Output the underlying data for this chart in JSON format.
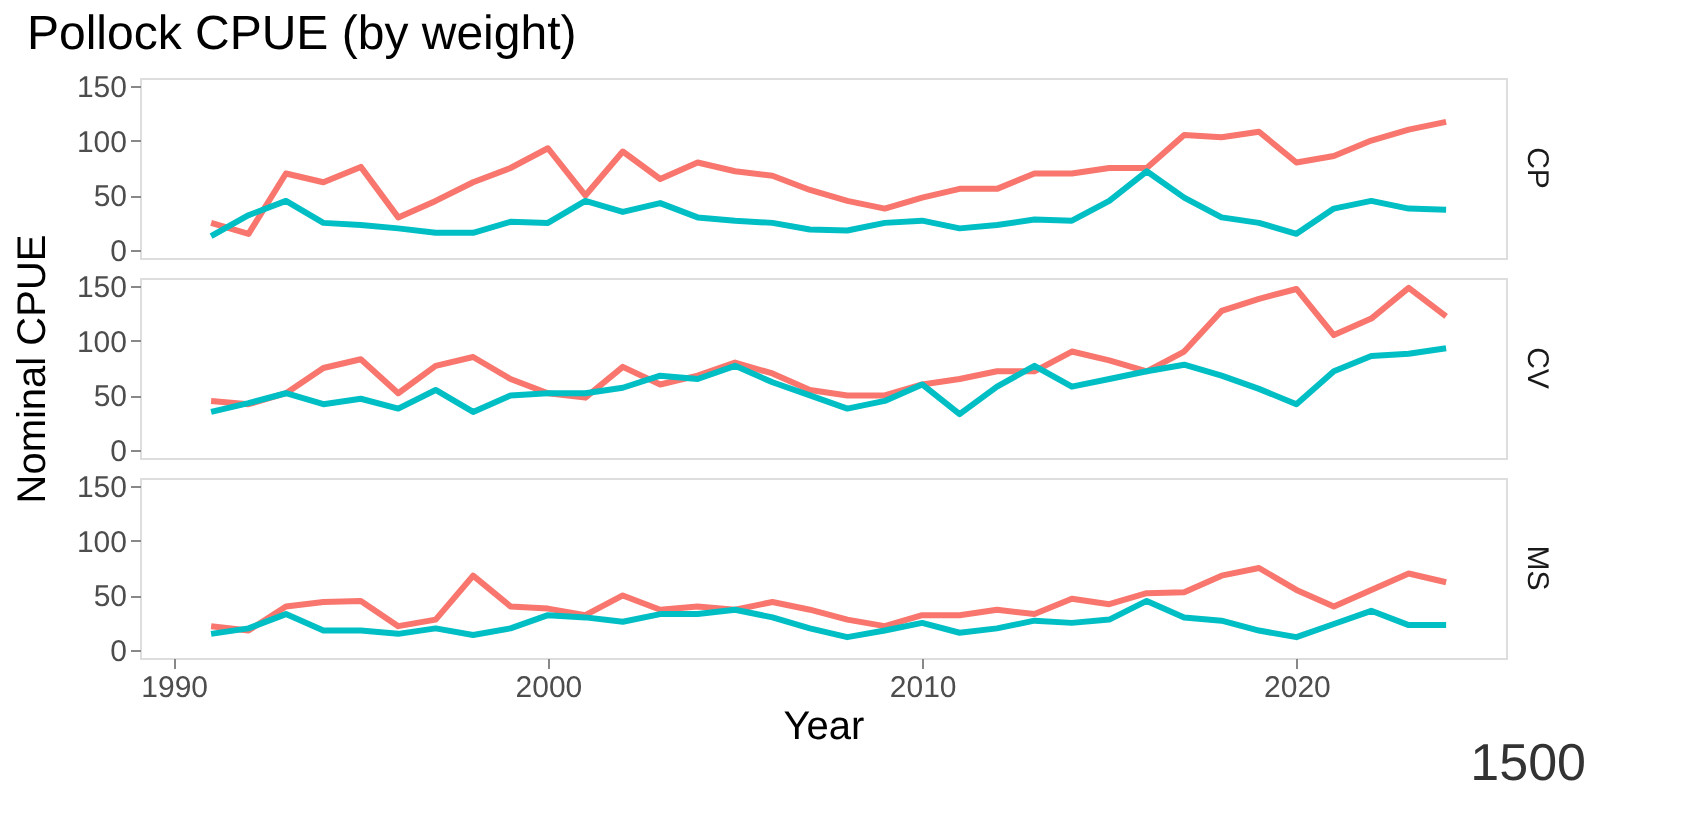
{
  "chart_data": [
    {
      "type": "line",
      "title": "Pollock CPUE (by weight)",
      "subtitle": "CP",
      "tick_labels": "y",
      "grid": false,
      "legend": false,
      "marker": "none",
      "line_style": "solid",
      "x": [
        1991,
        1992,
        1993,
        1994,
        1995,
        1996,
        1997,
        1998,
        1999,
        2000,
        2001,
        2002,
        2003,
        2004,
        2005,
        2006,
        2007,
        2008,
        2009,
        2010,
        2011,
        2012,
        2013,
        2014,
        2015,
        2016,
        2017,
        2018,
        2019,
        2020,
        2021,
        2022,
        2023,
        2024
      ],
      "xlim": [
        1989.1,
        2025.6
      ],
      "xticks": [
        1990,
        2000,
        2010,
        2020
      ],
      "ylim": [
        -7,
        157
      ],
      "yticks": [
        0,
        50,
        100,
        150
      ],
      "series": [
        {
          "color": "#f8766d",
          "values": [
            25,
            15,
            70,
            62,
            76,
            30,
            45,
            62,
            75,
            93,
            50,
            90,
            65,
            80,
            72,
            68,
            55,
            45,
            38,
            48,
            56,
            56,
            70,
            70,
            75,
            75,
            105,
            103,
            108,
            80,
            86,
            100,
            110,
            117
          ]
        },
        {
          "color": "#00bfc4",
          "values": [
            13,
            32,
            45,
            25,
            23,
            20,
            16,
            16,
            26,
            25,
            45,
            35,
            43,
            30,
            27,
            25,
            19,
            18,
            25,
            27,
            20,
            23,
            28,
            27,
            45,
            72,
            48,
            30,
            25,
            15,
            38,
            45,
            38,
            37
          ]
        }
      ]
    },
    {
      "type": "line",
      "subtitle": "CV",
      "ylabel": "Nominal CPUE",
      "tick_labels": "y",
      "grid": false,
      "legend": false,
      "marker": "none",
      "line_style": "solid",
      "x": [
        1991,
        1992,
        1993,
        1994,
        1995,
        1996,
        1997,
        1998,
        1999,
        2000,
        2001,
        2002,
        2003,
        2004,
        2005,
        2006,
        2007,
        2008,
        2009,
        2010,
        2011,
        2012,
        2013,
        2014,
        2015,
        2016,
        2017,
        2018,
        2019,
        2020,
        2021,
        2022,
        2023,
        2024
      ],
      "xlim": [
        1989.1,
        2025.6
      ],
      "xticks": [
        1990,
        2000,
        2010,
        2020
      ],
      "ylim": [
        -7,
        157
      ],
      "yticks": [
        0,
        50,
        100,
        150
      ],
      "series": [
        {
          "color": "#f8766d",
          "values": [
            45,
            42,
            52,
            75,
            83,
            52,
            77,
            85,
            65,
            52,
            48,
            76,
            60,
            68,
            80,
            70,
            55,
            50,
            50,
            60,
            65,
            72,
            72,
            90,
            82,
            72,
            90,
            127,
            138,
            147,
            105,
            120,
            148,
            122
          ]
        },
        {
          "color": "#00bfc4",
          "values": [
            35,
            43,
            52,
            42,
            47,
            38,
            55,
            35,
            50,
            52,
            52,
            57,
            68,
            65,
            77,
            62,
            50,
            38,
            45,
            60,
            33,
            58,
            77,
            58,
            65,
            72,
            78,
            68,
            56,
            42,
            72,
            86,
            88,
            93
          ]
        }
      ]
    },
    {
      "type": "line",
      "subtitle": "MS",
      "xlabel": "Year",
      "grid": false,
      "legend": false,
      "marker": "none",
      "line_style": "solid",
      "annotations": [
        "1500"
      ],
      "x": [
        1991,
        1992,
        1993,
        1994,
        1995,
        1996,
        1997,
        1998,
        1999,
        2000,
        2001,
        2002,
        2003,
        2004,
        2005,
        2006,
        2007,
        2008,
        2009,
        2010,
        2011,
        2012,
        2013,
        2014,
        2015,
        2016,
        2017,
        2018,
        2019,
        2020,
        2021,
        2022,
        2023,
        2024
      ],
      "xlim": [
        1989.1,
        2025.6
      ],
      "xticks": [
        1990,
        2000,
        2010,
        2020
      ],
      "ylim": [
        -7,
        157
      ],
      "yticks": [
        0,
        50,
        100,
        150
      ],
      "series": [
        {
          "color": "#f8766d",
          "values": [
            22,
            18,
            40,
            44,
            45,
            22,
            28,
            68,
            40,
            38,
            32,
            50,
            37,
            40,
            37,
            44,
            37,
            28,
            22,
            32,
            32,
            37,
            33,
            47,
            42,
            52,
            53,
            68,
            75,
            55,
            40,
            55,
            70,
            62
          ]
        },
        {
          "color": "#00bfc4",
          "values": [
            15,
            20,
            33,
            18,
            18,
            15,
            20,
            14,
            20,
            32,
            30,
            26,
            33,
            33,
            37,
            30,
            20,
            12,
            18,
            25,
            16,
            20,
            27,
            25,
            28,
            45,
            30,
            27,
            18,
            12,
            24,
            36,
            23,
            23
          ]
        }
      ]
    }
  ]
}
